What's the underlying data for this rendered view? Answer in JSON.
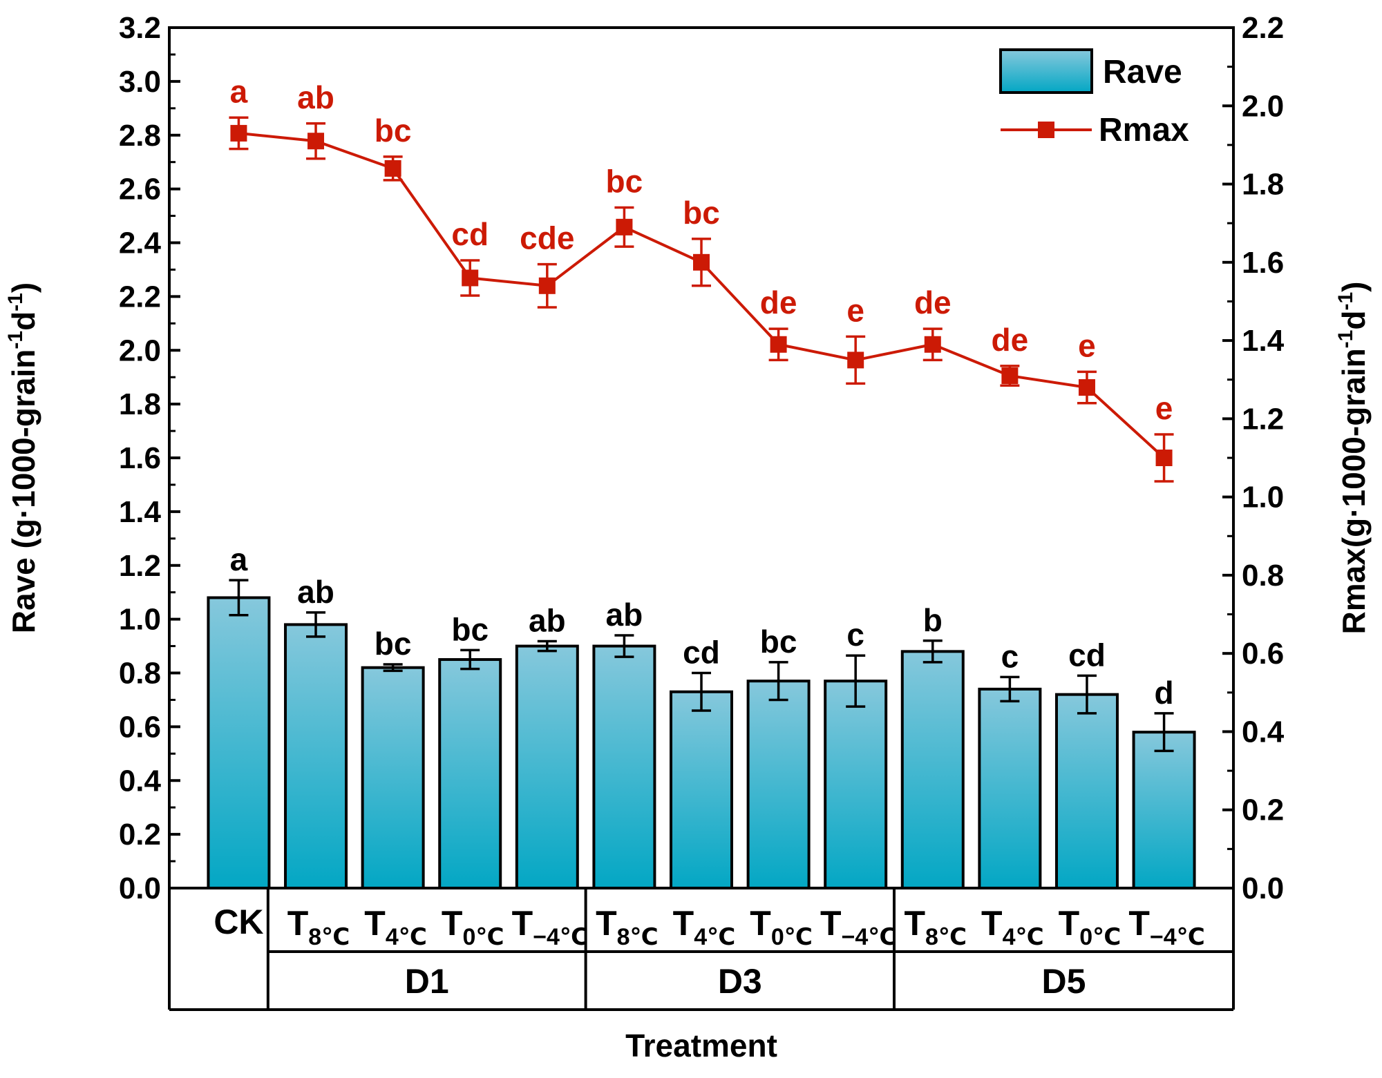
{
  "colors": {
    "bar_top": "#86c8dc",
    "bar_bottom": "#03a7c4",
    "line": "#cc1a05",
    "axis": "#000000"
  },
  "chart_data": {
    "type": "bar+line",
    "xlabel": "Treatment",
    "ylabel_left": {
      "main": "Rave (g·1000-grain",
      "sup1": "-1",
      "mid": "d",
      "sup2": "-1",
      "end": ")"
    },
    "ylabel_right": {
      "main": "Rmax(g·1000-grain",
      "sup1": "-1",
      "mid": "d",
      "sup2": "-1",
      "end": ")"
    },
    "ylim_left": [
      0,
      3.2
    ],
    "ylim_right": [
      0,
      2.2
    ],
    "yticks_left": [
      "0.0",
      "0.2",
      "0.4",
      "0.6",
      "0.8",
      "1.0",
      "1.2",
      "1.4",
      "1.6",
      "1.8",
      "2.0",
      "2.2",
      "2.4",
      "2.6",
      "2.8",
      "3.0",
      "3.2"
    ],
    "yticks_right": [
      "0.0",
      "0.2",
      "0.4",
      "0.6",
      "0.8",
      "1.0",
      "1.2",
      "1.4",
      "1.6",
      "1.8",
      "2.0",
      "2.2"
    ],
    "categories": [
      {
        "main": "CK",
        "sub": ""
      },
      {
        "main": "T",
        "sub": "8℃"
      },
      {
        "main": "T",
        "sub": "4℃"
      },
      {
        "main": "T",
        "sub": "0℃"
      },
      {
        "main": "T",
        "sub": "−4℃"
      },
      {
        "main": "T",
        "sub": "8℃"
      },
      {
        "main": "T",
        "sub": "4℃"
      },
      {
        "main": "T",
        "sub": "0℃"
      },
      {
        "main": "T",
        "sub": "−4℃"
      },
      {
        "main": "T",
        "sub": "8℃"
      },
      {
        "main": "T",
        "sub": "4℃"
      },
      {
        "main": "T",
        "sub": "0℃"
      },
      {
        "main": "T",
        "sub": "−4℃"
      }
    ],
    "groups": [
      {
        "label": "D1",
        "start": 1,
        "end": 4
      },
      {
        "label": "D3",
        "start": 5,
        "end": 8
      },
      {
        "label": "D5",
        "start": 9,
        "end": 12
      }
    ],
    "series": [
      {
        "name": "Rave",
        "type": "bar",
        "axis": "left",
        "values": [
          1.08,
          0.98,
          0.82,
          0.85,
          0.9,
          0.9,
          0.73,
          0.77,
          0.77,
          0.88,
          0.74,
          0.72,
          0.58
        ],
        "errors": [
          0.065,
          0.045,
          0.012,
          0.035,
          0.018,
          0.04,
          0.07,
          0.07,
          0.095,
          0.04,
          0.045,
          0.07,
          0.07
        ],
        "labels": [
          "a",
          "ab",
          "bc",
          "bc",
          "ab",
          "ab",
          "cd",
          "bc",
          "c",
          "b",
          "c",
          "cd",
          "d"
        ]
      },
      {
        "name": "Rmax",
        "type": "line",
        "axis": "right",
        "values": [
          1.93,
          1.91,
          1.84,
          1.56,
          1.54,
          1.69,
          1.6,
          1.39,
          1.35,
          1.39,
          1.31,
          1.28,
          1.1
        ],
        "errors": [
          0.04,
          0.045,
          0.03,
          0.045,
          0.055,
          0.05,
          0.06,
          0.04,
          0.06,
          0.04,
          0.025,
          0.04,
          0.06
        ],
        "labels": [
          "a",
          "ab",
          "bc",
          "cd",
          "cde",
          "bc",
          "bc",
          "de",
          "e",
          "de",
          "de",
          "e",
          "e"
        ]
      }
    ],
    "legend": {
      "position": "top-right",
      "entries": [
        "Rave",
        "Rmax"
      ]
    }
  }
}
